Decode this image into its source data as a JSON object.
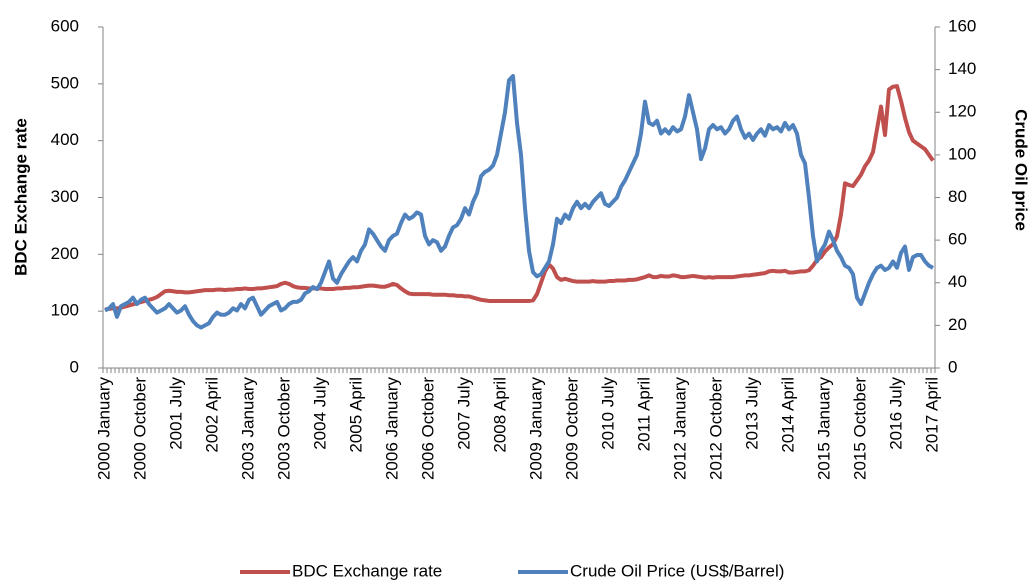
{
  "chart_data": {
    "type": "line",
    "y_label": "BDC Exchange rate",
    "y2_label": "Crude Oil price",
    "ylim": [
      0,
      600
    ],
    "yticks": [
      0,
      100,
      200,
      300,
      400,
      500,
      600
    ],
    "y2lim": [
      0,
      160
    ],
    "y2ticks": [
      0,
      20,
      40,
      60,
      80,
      100,
      120,
      140,
      160
    ],
    "legend": "bottom",
    "categories": [
      "2000 January",
      null,
      null,
      null,
      null,
      null,
      null,
      null,
      null,
      "2000 October",
      null,
      null,
      null,
      null,
      null,
      null,
      null,
      null,
      "2001 July",
      null,
      null,
      null,
      null,
      null,
      null,
      null,
      null,
      "2002 April",
      null,
      null,
      null,
      null,
      null,
      null,
      null,
      null,
      "2003 January",
      null,
      null,
      null,
      null,
      null,
      null,
      null,
      null,
      "2003 October",
      null,
      null,
      null,
      null,
      null,
      null,
      null,
      null,
      "2004 July",
      null,
      null,
      null,
      null,
      null,
      null,
      null,
      null,
      "2005 April",
      null,
      null,
      null,
      null,
      null,
      null,
      null,
      null,
      "2006 January",
      null,
      null,
      null,
      null,
      null,
      null,
      null,
      null,
      "2006 October",
      null,
      null,
      null,
      null,
      null,
      null,
      null,
      null,
      "2007 July",
      null,
      null,
      null,
      null,
      null,
      null,
      null,
      null,
      "2008 April",
      null,
      null,
      null,
      null,
      null,
      null,
      null,
      null,
      "2009 January",
      null,
      null,
      null,
      null,
      null,
      null,
      null,
      null,
      "2009 October",
      null,
      null,
      null,
      null,
      null,
      null,
      null,
      null,
      "2010 July",
      null,
      null,
      null,
      null,
      null,
      null,
      null,
      null,
      "2011 April",
      null,
      null,
      null,
      null,
      null,
      null,
      null,
      null,
      "2012 January",
      null,
      null,
      null,
      null,
      null,
      null,
      null,
      null,
      "2012 October",
      null,
      null,
      null,
      null,
      null,
      null,
      null,
      null,
      "2013 July",
      null,
      null,
      null,
      null,
      null,
      null,
      null,
      null,
      "2014 April",
      null,
      null,
      null,
      null,
      null,
      null,
      null,
      null,
      "2015 January",
      null,
      null,
      null,
      null,
      null,
      null,
      null,
      null,
      "2015 October",
      null,
      null,
      null,
      null,
      null,
      null,
      null,
      null,
      "2016 July",
      null,
      null,
      null,
      null,
      null,
      null,
      null,
      null,
      "2017 April"
    ],
    "series": [
      {
        "name": "BDC Exchange rate",
        "color": "#c0504d",
        "axis": "y",
        "values": [
          103,
          104,
          105,
          105,
          106,
          108,
          110,
          112,
          114,
          116,
          118,
          120,
          122,
          125,
          130,
          135,
          136,
          135,
          134,
          134,
          133,
          133,
          134,
          135,
          136,
          137,
          137,
          137,
          138,
          138,
          137,
          138,
          138,
          139,
          139,
          140,
          139,
          139,
          140,
          140,
          141,
          142,
          143,
          144,
          148,
          150,
          148,
          144,
          142,
          141,
          141,
          140,
          140,
          140,
          140,
          139,
          139,
          139,
          140,
          140,
          141,
          141,
          142,
          142,
          143,
          144,
          145,
          145,
          144,
          143,
          143,
          145,
          148,
          146,
          140,
          135,
          131,
          130,
          130,
          130,
          130,
          130,
          129,
          129,
          129,
          129,
          128,
          128,
          127,
          127,
          126,
          126,
          124,
          122,
          120,
          119,
          118,
          118,
          118,
          118,
          118,
          118,
          118,
          118,
          118,
          118,
          118,
          119,
          130,
          150,
          170,
          182,
          175,
          160,
          155,
          157,
          155,
          153,
          152,
          152,
          152,
          152,
          153,
          152,
          152,
          152,
          153,
          153,
          154,
          154,
          154,
          155,
          155,
          156,
          158,
          160,
          163,
          160,
          160,
          162,
          161,
          161,
          163,
          162,
          160,
          160,
          161,
          162,
          161,
          160,
          159,
          160,
          159,
          160,
          160,
          160,
          160,
          160,
          161,
          162,
          163,
          163,
          164,
          165,
          166,
          167,
          170,
          171,
          170,
          170,
          171,
          168,
          168,
          169,
          170,
          170,
          172,
          180,
          190,
          195,
          205,
          212,
          218,
          232,
          270,
          325,
          322,
          320,
          330,
          340,
          355,
          365,
          380,
          420,
          460,
          410,
          490,
          495,
          496,
          470,
          440,
          415,
          400,
          395,
          390,
          385,
          375,
          365
        ]
      },
      {
        "name": "Crude Oil Price (US$/Barrel)",
        "color": "#4f81bd",
        "axis": "y2",
        "values": [
          27,
          28,
          30,
          24,
          29,
          30,
          31,
          33,
          30,
          32,
          33,
          30,
          28,
          26,
          27,
          28,
          30,
          28,
          26,
          27,
          29,
          25,
          22,
          20,
          19,
          20,
          21,
          24,
          26,
          25,
          25,
          26,
          28,
          27,
          30,
          28,
          32,
          33,
          29,
          25,
          27,
          29,
          30,
          31,
          27,
          28,
          30,
          31,
          31,
          32,
          35,
          36,
          38,
          37,
          40,
          45,
          50,
          42,
          40,
          44,
          47,
          50,
          52,
          50,
          55,
          58,
          65,
          63,
          60,
          57,
          55,
          60,
          62,
          63,
          68,
          72,
          70,
          71,
          73,
          72,
          62,
          58,
          60,
          59,
          55,
          57,
          62,
          66,
          67,
          70,
          75,
          72,
          78,
          82,
          90,
          92,
          93,
          95,
          100,
          110,
          120,
          135,
          137,
          115,
          100,
          75,
          55,
          45,
          43,
          44,
          47,
          50,
          58,
          70,
          68,
          72,
          70,
          75,
          78,
          75,
          77,
          75,
          78,
          80,
          82,
          77,
          76,
          78,
          80,
          85,
          88,
          92,
          96,
          100,
          110,
          125,
          115,
          114,
          116,
          110,
          112,
          110,
          113,
          111,
          112,
          118,
          128,
          120,
          112,
          98,
          103,
          112,
          114,
          112,
          113,
          110,
          112,
          116,
          118,
          112,
          108,
          110,
          107,
          110,
          112,
          109,
          114,
          112,
          113,
          111,
          115,
          112,
          114,
          110,
          100,
          96,
          80,
          62,
          50,
          55,
          58,
          64,
          60,
          55,
          52,
          48,
          47,
          44,
          33,
          30,
          35,
          40,
          44,
          47,
          48,
          46,
          47,
          50,
          47,
          54,
          57,
          46,
          52,
          53,
          53,
          50,
          48,
          47
        ]
      }
    ]
  }
}
